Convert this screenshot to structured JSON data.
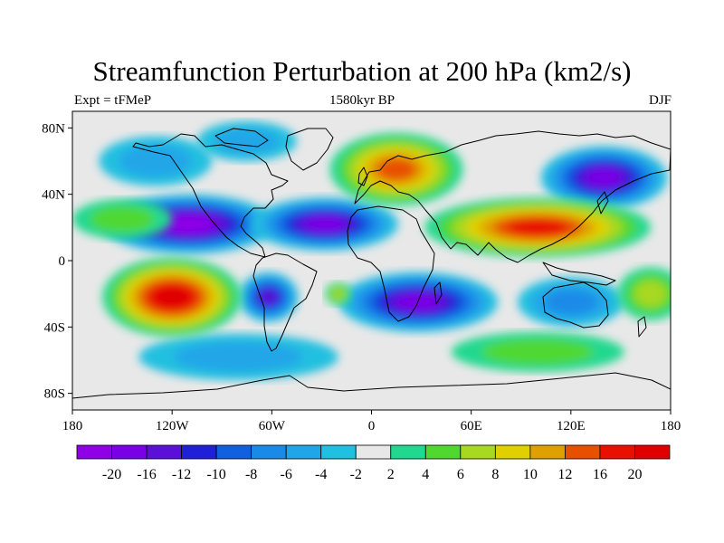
{
  "title": "Streamfunction Perturbation at 200 hPa (km2/s)",
  "subtitle_left": "Expt = tFMeP",
  "subtitle_center": "1580kyr BP",
  "subtitle_right": "DJF",
  "map": {
    "lon_range": [
      -180,
      180
    ],
    "lat_range": [
      -90,
      90
    ],
    "lon_ticks": [
      {
        "value": -180,
        "label": "180"
      },
      {
        "value": -120,
        "label": "120W"
      },
      {
        "value": -60,
        "label": "60W"
      },
      {
        "value": 0,
        "label": "0"
      },
      {
        "value": 60,
        "label": "60E"
      },
      {
        "value": 120,
        "label": "120E"
      },
      {
        "value": 180,
        "label": "180"
      }
    ],
    "lat_ticks": [
      {
        "value": 80,
        "label": "80N"
      },
      {
        "value": 40,
        "label": "40N"
      },
      {
        "value": 0,
        "label": "0"
      },
      {
        "value": -40,
        "label": "40S"
      },
      {
        "value": -80,
        "label": "80S"
      }
    ],
    "background_color": "#e8e8e8"
  },
  "colorbar": {
    "labels": [
      "-20",
      "-16",
      "-12",
      "-10",
      "-8",
      "-6",
      "-4",
      "-2",
      "2",
      "4",
      "6",
      "8",
      "10",
      "12",
      "16",
      "20"
    ],
    "colors": [
      "#8f00e6",
      "#7a00e6",
      "#5a10d8",
      "#2020d8",
      "#1060e0",
      "#1a8ae8",
      "#20a6e8",
      "#20c0e0",
      "#e8e8e8",
      "#20d890",
      "#50d830",
      "#a8d820",
      "#e0d000",
      "#e0a000",
      "#e85000",
      "#e81000",
      "#e00000"
    ]
  },
  "anomalies": [
    {
      "lon": -110,
      "lat": 22,
      "rx": 52,
      "ry": 18,
      "value": -20
    },
    {
      "lon": -28,
      "lat": 22,
      "rx": 44,
      "ry": 16,
      "value": -16
    },
    {
      "lon": 140,
      "lat": 50,
      "rx": 38,
      "ry": 19,
      "value": -16
    },
    {
      "lon": 28,
      "lat": -25,
      "rx": 48,
      "ry": 18,
      "value": -18
    },
    {
      "lon": -62,
      "lat": -22,
      "rx": 18,
      "ry": 15,
      "value": -14
    },
    {
      "lon": 120,
      "lat": -25,
      "rx": 32,
      "ry": 15,
      "value": -7
    },
    {
      "lon": -130,
      "lat": 60,
      "rx": 34,
      "ry": 15,
      "value": -5
    },
    {
      "lon": -75,
      "lat": 72,
      "rx": 30,
      "ry": 12,
      "value": -4
    },
    {
      "lon": -80,
      "lat": -58,
      "rx": 60,
      "ry": 14,
      "value": -5
    },
    {
      "lon": -120,
      "lat": -22,
      "rx": 42,
      "ry": 24,
      "value": 20
    },
    {
      "lon": 100,
      "lat": 20,
      "rx": 68,
      "ry": 18,
      "value": 18
    },
    {
      "lon": 15,
      "lat": 55,
      "rx": 40,
      "ry": 22,
      "value": 15
    },
    {
      "lon": -150,
      "lat": 25,
      "rx": 30,
      "ry": 12,
      "value": 4
    },
    {
      "lon": -20,
      "lat": -20,
      "rx": 8,
      "ry": 7,
      "value": 6
    },
    {
      "lon": 100,
      "lat": -55,
      "rx": 52,
      "ry": 12,
      "value": 5
    },
    {
      "lon": 168,
      "lat": -20,
      "rx": 20,
      "ry": 16,
      "value": 6
    }
  ]
}
